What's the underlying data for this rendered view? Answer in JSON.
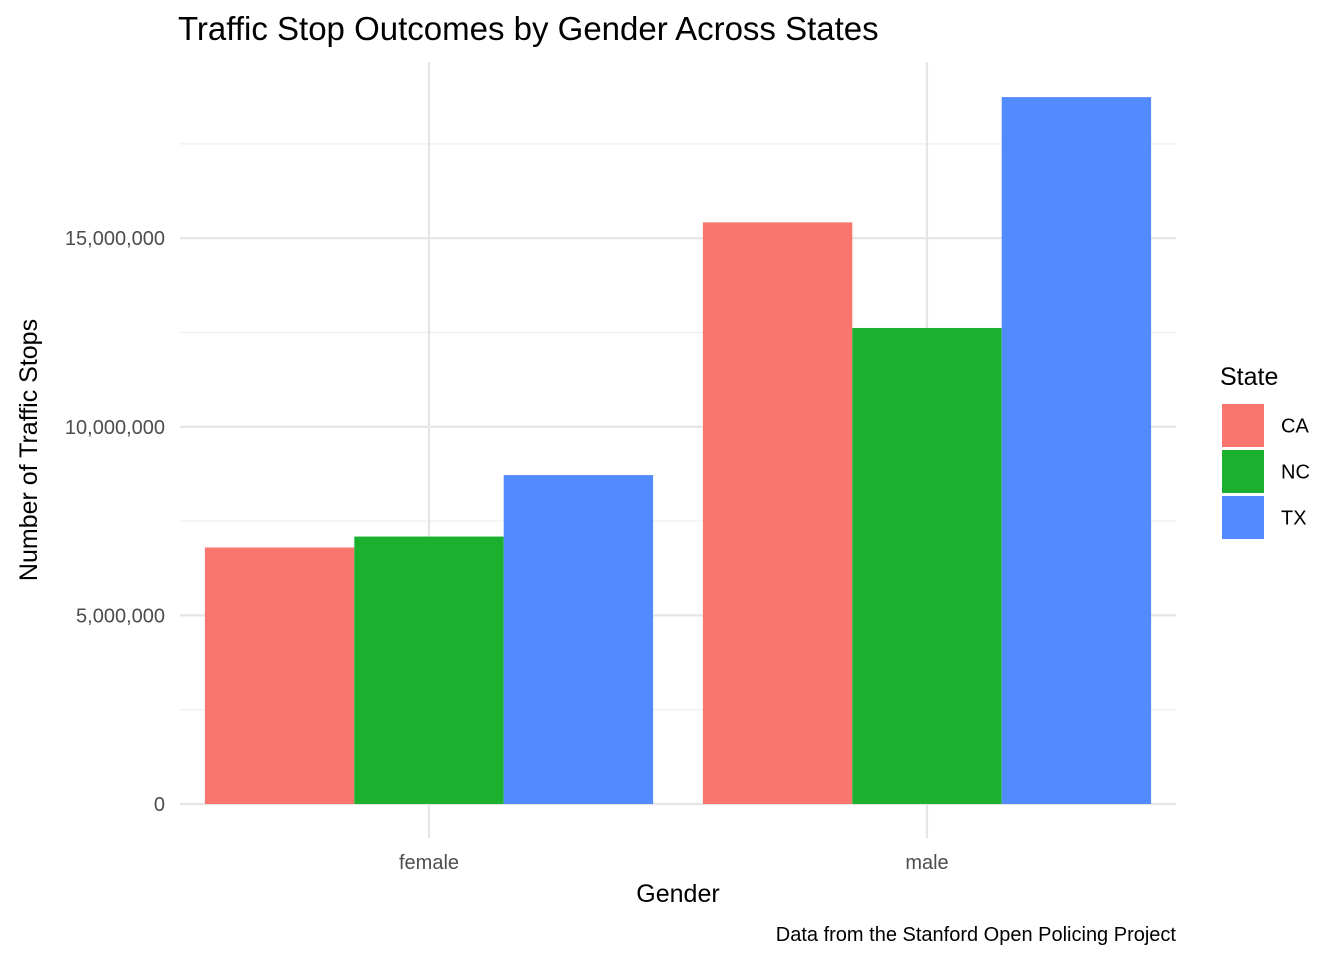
{
  "chart_data": {
    "type": "bar",
    "title": "Traffic Stop Outcomes by Gender Across States",
    "xlabel": "Gender",
    "ylabel": "Number of Traffic Stops",
    "caption": "Data from the Stanford Open Policing Project",
    "categories": [
      "female",
      "male"
    ],
    "series": [
      {
        "name": "CA",
        "color": "#F8766D",
        "values": [
          6800000,
          15420000
        ]
      },
      {
        "name": "NC",
        "color": "#1BB12F",
        "values": [
          7090000,
          12620000
        ]
      },
      {
        "name": "TX",
        "color": "#528AFF",
        "values": [
          8720000,
          18740000
        ]
      }
    ],
    "ylim": [
      0,
      19500000
    ],
    "yticks": [
      0,
      5000000,
      10000000,
      15000000
    ],
    "ytick_labels": [
      "0",
      "5,000,000",
      "10,000,000",
      "15,000,000"
    ],
    "legend": {
      "title": "State",
      "placement": "right"
    },
    "grid": true
  }
}
